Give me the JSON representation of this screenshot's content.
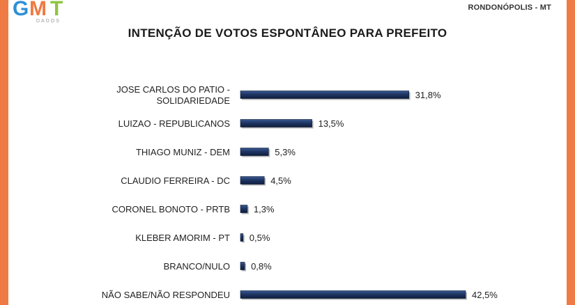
{
  "header": {
    "logo_text": "GMT",
    "logo_subtext": "DADOS",
    "region": "RONDONÓPOLIS - MT"
  },
  "colors": {
    "frame": "#f07a43",
    "bar": "#1f3664",
    "logo_g": "#2e8fd6",
    "logo_m": "#f07a43",
    "logo_t": "#8cc63f"
  },
  "chart_data": {
    "type": "bar",
    "orientation": "horizontal",
    "title": "INTENÇÃO DE VOTOS ESPONTÂNEO PARA PREFEITO",
    "categories": [
      [
        "JOSE CARLOS DO PATIO -",
        "SOLIDARIEDADE"
      ],
      [
        "LUIZAO - REPUBLICANOS"
      ],
      [
        "THIAGO MUNIZ - DEM"
      ],
      [
        "CLAUDIO FERREIRA - DC"
      ],
      [
        "CORONEL BONOTO - PRTB"
      ],
      [
        "KLEBER AMORIM - PT"
      ],
      [
        "BRANCO/NULO"
      ],
      [
        "NÃO SABE/NÃO RESPONDEU"
      ]
    ],
    "values": [
      31.8,
      13.5,
      5.3,
      4.5,
      1.3,
      0.5,
      0.8,
      42.5
    ],
    "value_labels": [
      "31,8%",
      "13,5%",
      "5,3%",
      "4,5%",
      "1,3%",
      "0,5%",
      "0,8%",
      "42,5%"
    ],
    "unit": "%",
    "xlim": [
      0,
      42.5
    ],
    "grid": false,
    "legend": "none"
  }
}
